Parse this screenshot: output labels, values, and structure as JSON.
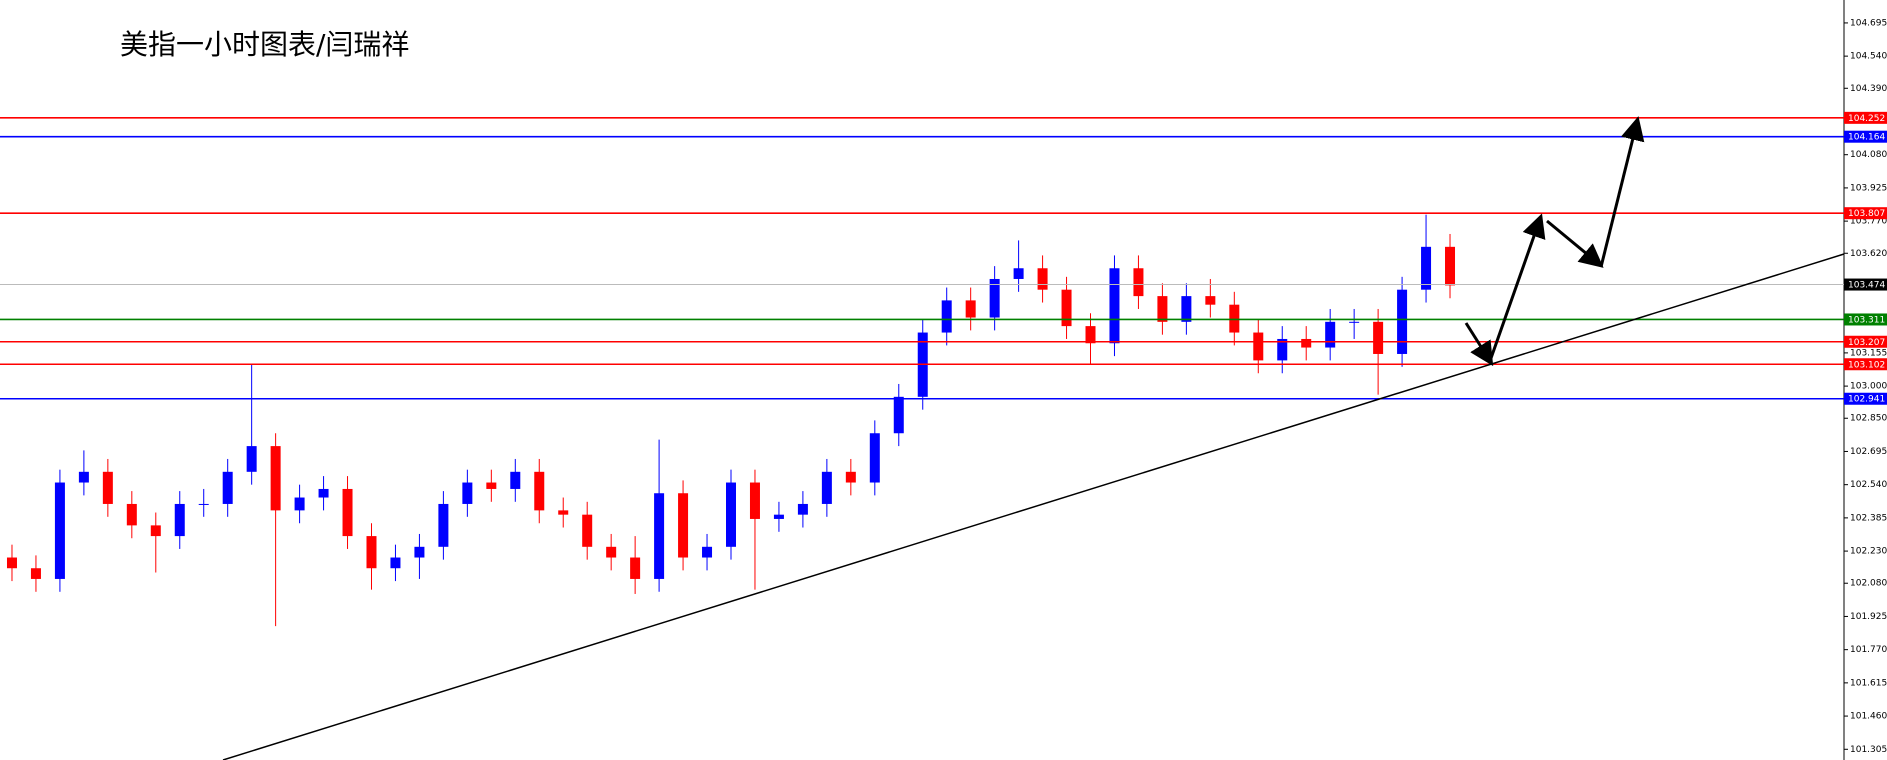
{
  "chart_data": {
    "type": "candlestick",
    "title": "美指一小时图表/闫瑞祥",
    "ylim": [
      101.255,
      104.802
    ],
    "yticks": [
      104.695,
      {
        "value": 104.54,
        "label": "104.540"
      },
      {
        "value": 104.39,
        "label": "104.390"
      },
      {
        "value": 104.08,
        "label": "104.080"
      },
      103.925,
      {
        "value": 103.77,
        "label": "103.770"
      },
      {
        "value": 103.62,
        "label": "103.620"
      },
      103.155,
      {
        "value": 103,
        "label": "103.000"
      },
      {
        "value": 102.85,
        "label": "102.850"
      },
      102.695,
      {
        "value": 102.54,
        "label": "102.540"
      },
      102.385,
      {
        "value": 102.23,
        "label": "102.230"
      },
      {
        "value": 102.08,
        "label": "102.080"
      },
      101.925,
      {
        "value": 101.77,
        "label": "101.770"
      },
      101.615,
      {
        "value": 101.46,
        "label": "101.460"
      },
      101.305
    ],
    "up_color": "#0000ff",
    "down_color": "#ff0000",
    "open": [
      102.2,
      102.15,
      102.1,
      102.55,
      102.6,
      102.45,
      102.35,
      102.3,
      102.45,
      102.45,
      102.6,
      102.72,
      102.42,
      102.48,
      102.52,
      102.3,
      102.15,
      102.2,
      102.25,
      102.45,
      102.55,
      102.52,
      102.6,
      102.42,
      102.4,
      102.25,
      102.2,
      102.1,
      102.5,
      102.2,
      102.25,
      102.55,
      102.38,
      102.4,
      102.45,
      102.6,
      102.55,
      102.78,
      102.95,
      103.25,
      103.4,
      103.32,
      103.5,
      103.55,
      103.45,
      103.28,
      103.2,
      103.55,
      103.42,
      103.3,
      103.42,
      103.38,
      103.25,
      103.12,
      103.22,
      103.18,
      103.3,
      103.3,
      103.15,
      103.45,
      103.65
    ],
    "high": [
      102.26,
      102.21,
      102.61,
      102.7,
      102.66,
      102.51,
      102.41,
      102.51,
      102.52,
      102.66,
      103.1,
      102.78,
      102.54,
      102.58,
      102.58,
      102.36,
      102.26,
      102.31,
      102.51,
      102.61,
      102.61,
      102.66,
      102.66,
      102.48,
      102.46,
      102.31,
      102.3,
      102.75,
      102.56,
      102.31,
      102.61,
      102.61,
      102.46,
      102.51,
      102.66,
      102.66,
      102.84,
      103.01,
      103.31,
      103.46,
      103.46,
      103.56,
      103.68,
      103.61,
      103.51,
      103.34,
      103.61,
      103.61,
      103.48,
      103.48,
      103.5,
      103.44,
      103.31,
      103.28,
      103.28,
      103.36,
      103.36,
      103.36,
      103.51,
      103.8,
      103.71
    ],
    "low": [
      102.09,
      102.04,
      102.04,
      102.49,
      102.39,
      102.29,
      102.13,
      102.24,
      102.39,
      102.39,
      102.54,
      101.88,
      102.36,
      102.42,
      102.24,
      102.05,
      102.09,
      102.1,
      102.19,
      102.39,
      102.46,
      102.46,
      102.36,
      102.34,
      102.19,
      102.14,
      102.03,
      102.04,
      102.14,
      102.14,
      102.19,
      102.05,
      102.32,
      102.34,
      102.39,
      102.49,
      102.49,
      102.72,
      102.89,
      103.19,
      103.26,
      103.26,
      103.44,
      103.39,
      103.22,
      103.1,
      103.14,
      103.36,
      103.24,
      103.24,
      103.32,
      103.19,
      103.06,
      103.06,
      103.12,
      103.12,
      103.22,
      102.96,
      103.09,
      103.39,
      103.41
    ],
    "close": [
      102.15,
      102.1,
      102.55,
      102.6,
      102.45,
      102.35,
      102.3,
      102.45,
      102.45,
      102.6,
      102.72,
      102.42,
      102.48,
      102.52,
      102.3,
      102.15,
      102.2,
      102.25,
      102.45,
      102.55,
      102.52,
      102.6,
      102.42,
      102.4,
      102.25,
      102.2,
      102.1,
      102.5,
      102.2,
      102.25,
      102.55,
      102.38,
      102.4,
      102.45,
      102.6,
      102.55,
      102.78,
      102.95,
      103.25,
      103.4,
      103.32,
      103.5,
      103.55,
      103.45,
      103.28,
      103.2,
      103.55,
      103.42,
      103.3,
      103.42,
      103.38,
      103.25,
      103.12,
      103.22,
      103.18,
      103.3,
      103.3,
      103.15,
      103.45,
      103.65,
      103.47
    ],
    "levels": [
      {
        "value": 104.252,
        "color": "#ff0000"
      },
      {
        "value": 104.164,
        "color": "#0000ff"
      },
      {
        "value": 103.807,
        "color": "#ff0000"
      },
      {
        "value": 103.474,
        "color": "#000000"
      },
      {
        "value": 103.311,
        "color": "#008000"
      },
      {
        "value": 103.207,
        "color": "#ff0000"
      },
      {
        "value": 103.102,
        "color": "#ff0000"
      },
      {
        "value": 102.941,
        "color": "#0000ff"
      }
    ]
  }
}
